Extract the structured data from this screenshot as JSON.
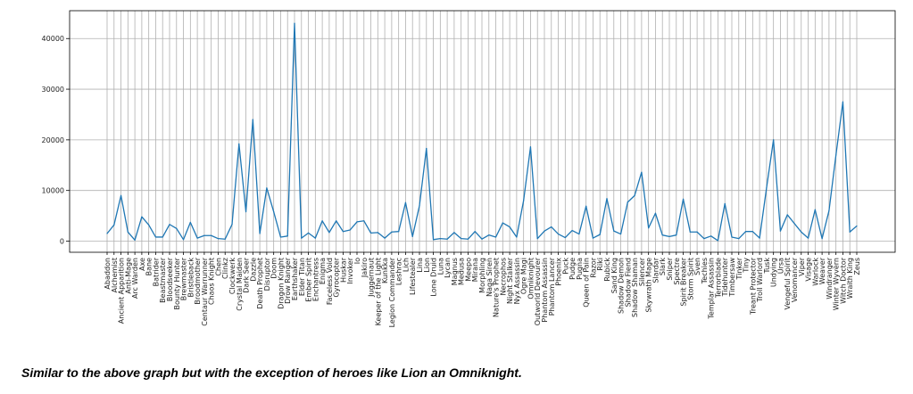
{
  "caption": "Similar to the above graph but with the exception of heroes like Lion an Omniknight.",
  "colors": {
    "line": "#1f77b4",
    "grid": "#b0b0b0",
    "axis": "#000000"
  },
  "chart_data": {
    "type": "line",
    "title": "",
    "xlabel": "",
    "ylabel": "",
    "grid": true,
    "ylim": [
      -2200,
      45500
    ],
    "yticks": [
      0,
      10000,
      20000,
      30000,
      40000
    ],
    "categories": [
      "Abaddon",
      "Alchemist",
      "Ancient Apparition",
      "Anti-Mage",
      "Arc Warden",
      "Axe",
      "Bane",
      "Batrider",
      "Beastmaster",
      "Bloodseeker",
      "Bounty Hunter",
      "Brewmaster",
      "Bristleback",
      "Broodmother",
      "Centaur Warrunner",
      "Chaos Knight",
      "Chen",
      "Clinkz",
      "Clockwerk",
      "Crystal Maiden",
      "Dark Seer",
      "Dazzle",
      "Death Prophet",
      "Disruptor",
      "Doom",
      "Dragon Knight",
      "Drow Ranger",
      "Earthshaker",
      "Elder Titan",
      "Ember Spirit",
      "Enchantress",
      "Enigma",
      "Faceless Void",
      "Gyrocopter",
      "Huskar",
      "Invoker",
      "Io",
      "Jakiro",
      "Juggernaut",
      "Keeper of the Light",
      "Kunkka",
      "Legion Commander",
      "Leshrac",
      "Lich",
      "Lifestealer",
      "Lina",
      "Lion",
      "Lone Druid",
      "Luna",
      "Lycan",
      "Magnus",
      "Medusa",
      "Meepo",
      "Mirana",
      "Morphling",
      "Naga Siren",
      "Nature's Prophet",
      "Necrophos",
      "Night Stalker",
      "Nyx Assassin",
      "Ogre Magi",
      "Omniknight",
      "Outworld Devourer",
      "Phantom Assassin",
      "Phantom Lancer",
      "Phoenix",
      "Puck",
      "Pudge",
      "Pugna",
      "Queen of Pain",
      "Razor",
      "Riki",
      "Rubick",
      "Sand King",
      "Shadow Demon",
      "Shadow Fiend",
      "Shadow Shaman",
      "Silencer",
      "Skywrath Mage",
      "Slardar",
      "Slark",
      "Sniper",
      "Spectre",
      "Spirit Breaker",
      "Storm Spirit",
      "Sven",
      "Techies",
      "Templar Assassin",
      "Terrorblade",
      "Tidehunter",
      "Timbersaw",
      "Tinker",
      "Tiny",
      "Treant Protector",
      "Troll Warlord",
      "Tusk",
      "Undying",
      "Ursa",
      "Vengeful Spirit",
      "Venomancer",
      "Viper",
      "Visage",
      "Warlock",
      "Weaver",
      "Windranger",
      "Winter Wyvern",
      "Witch Doctor",
      "Wraith King",
      "Zeus"
    ],
    "series": [
      {
        "name": "count",
        "values": [
          1500,
          3200,
          9000,
          1800,
          200,
          4800,
          3200,
          800,
          800,
          3300,
          2500,
          300,
          3700,
          600,
          1100,
          1100,
          500,
          400,
          3300,
          19200,
          5800,
          24000,
          1500,
          10500,
          5800,
          800,
          1000,
          43000,
          600,
          1600,
          600,
          4000,
          1700,
          4000,
          1900,
          2200,
          3800,
          4000,
          1600,
          1700,
          600,
          1800,
          1900,
          7600,
          900,
          7000,
          18300,
          300,
          500,
          400,
          1700,
          500,
          400,
          1900,
          400,
          1200,
          800,
          3600,
          2800,
          800,
          8000,
          18600,
          500,
          2000,
          2800,
          1400,
          700,
          2100,
          1400,
          6900,
          600,
          1300,
          8400,
          2000,
          1400,
          7700,
          9000,
          13600,
          2600,
          5500,
          1200,
          900,
          1200,
          8300,
          1800,
          1800,
          500,
          1000,
          100,
          7400,
          800,
          500,
          1900,
          1900,
          600,
          10500,
          20000,
          2000,
          5200,
          3500,
          1800,
          600,
          6200,
          500,
          6000,
          17000,
          27500,
          1800,
          3000
        ]
      }
    ]
  }
}
